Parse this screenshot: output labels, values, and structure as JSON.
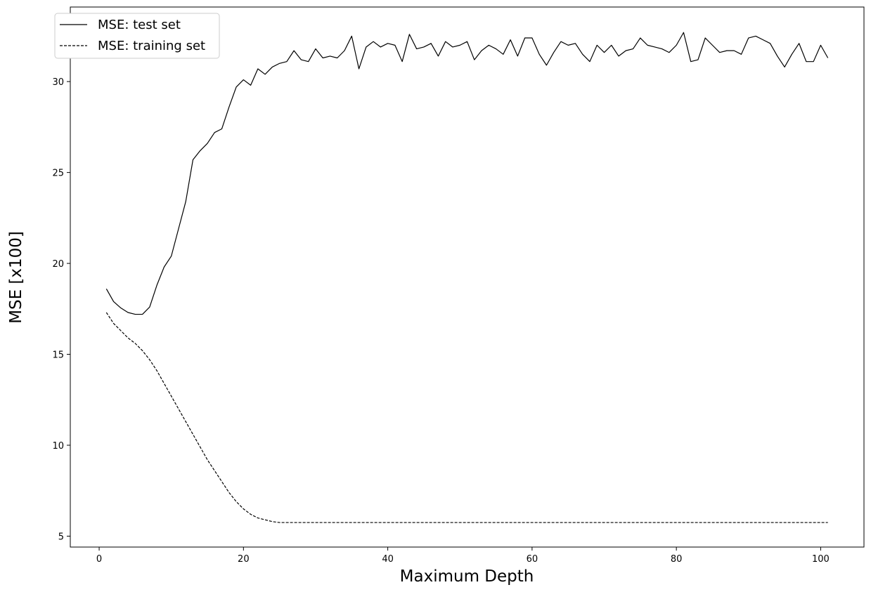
{
  "chart_data": {
    "type": "line",
    "title": "",
    "xlabel": "Maximum Depth",
    "ylabel": "MSE [x100]",
    "xlim": [
      -4,
      106
    ],
    "ylim": [
      4.4,
      34.1
    ],
    "xticks": [
      0,
      20,
      40,
      60,
      80,
      100
    ],
    "yticks": [
      5,
      10,
      15,
      20,
      25,
      30
    ],
    "grid": false,
    "legend_position": "top-left",
    "series": [
      {
        "name": "MSE: test set",
        "style": "solid",
        "color": "#000000",
        "x": [
          1,
          2,
          3,
          4,
          5,
          6,
          7,
          8,
          9,
          10,
          11,
          12,
          13,
          14,
          15,
          16,
          17,
          18,
          19,
          20,
          21,
          22,
          23,
          24,
          25,
          26,
          27,
          28,
          29,
          30,
          31,
          32,
          33,
          34,
          35,
          36,
          37,
          38,
          39,
          40,
          41,
          42,
          43,
          44,
          45,
          46,
          47,
          48,
          49,
          50,
          51,
          52,
          53,
          54,
          55,
          56,
          57,
          58,
          59,
          60,
          61,
          62,
          63,
          64,
          65,
          66,
          67,
          68,
          69,
          70,
          71,
          72,
          73,
          74,
          75,
          76,
          77,
          78,
          79,
          80,
          81,
          82,
          83,
          84,
          85,
          86,
          87,
          88,
          89,
          90,
          91,
          92,
          93,
          94,
          95,
          96,
          97,
          98,
          99,
          100,
          101
        ],
        "values": [
          18.6,
          17.9,
          17.55,
          17.3,
          17.2,
          17.2,
          17.6,
          18.8,
          19.8,
          20.4,
          21.9,
          23.4,
          25.7,
          26.2,
          26.6,
          27.2,
          27.4,
          28.6,
          29.7,
          30.1,
          29.8,
          30.7,
          30.4,
          30.8,
          31.0,
          31.1,
          31.7,
          31.2,
          31.1,
          31.8,
          31.3,
          31.4,
          31.3,
          31.7,
          32.5,
          30.7,
          31.9,
          32.2,
          31.9,
          32.1,
          32.0,
          31.1,
          32.6,
          31.8,
          31.9,
          32.1,
          31.4,
          32.2,
          31.9,
          32.0,
          32.2,
          31.2,
          31.7,
          32.0,
          31.8,
          31.5,
          32.3,
          31.4,
          32.4,
          32.4,
          31.5,
          30.9,
          31.6,
          32.2,
          32.0,
          32.1,
          31.5,
          31.1,
          32.0,
          31.6,
          32.0,
          31.4,
          31.7,
          31.8,
          32.4,
          32.0,
          31.9,
          31.8,
          31.6,
          32.0,
          32.7,
          31.1,
          31.2,
          32.4,
          32.0,
          31.6,
          31.7,
          31.7,
          31.5,
          32.4,
          32.5,
          32.3,
          32.1,
          31.4,
          30.8,
          31.5,
          32.1,
          31.1,
          31.1,
          32.0,
          31.3
        ]
      },
      {
        "name": "MSE: training set",
        "style": "dashed",
        "color": "#000000",
        "x": [
          1,
          2,
          3,
          4,
          5,
          6,
          7,
          8,
          9,
          10,
          11,
          12,
          13,
          14,
          15,
          16,
          17,
          18,
          19,
          20,
          21,
          22,
          23,
          24,
          25,
          26,
          27,
          28,
          29,
          30,
          31,
          32,
          33,
          34,
          35,
          36,
          37,
          38,
          39,
          40,
          41,
          42,
          43,
          44,
          45,
          46,
          47,
          48,
          49,
          50,
          51,
          52,
          53,
          54,
          55,
          56,
          57,
          58,
          59,
          60,
          61,
          62,
          63,
          64,
          65,
          66,
          67,
          68,
          69,
          70,
          71,
          72,
          73,
          74,
          75,
          76,
          77,
          78,
          79,
          80,
          81,
          82,
          83,
          84,
          85,
          86,
          87,
          88,
          89,
          90,
          91,
          92,
          93,
          94,
          95,
          96,
          97,
          98,
          99,
          100,
          101
        ],
        "values": [
          17.3,
          16.7,
          16.3,
          15.9,
          15.6,
          15.2,
          14.7,
          14.1,
          13.4,
          12.7,
          12.0,
          11.3,
          10.6,
          9.9,
          9.2,
          8.6,
          8.0,
          7.4,
          6.9,
          6.5,
          6.2,
          6.0,
          5.9,
          5.8,
          5.75,
          5.75,
          5.75,
          5.75,
          5.75,
          5.75,
          5.75,
          5.75,
          5.75,
          5.75,
          5.75,
          5.75,
          5.75,
          5.75,
          5.75,
          5.75,
          5.75,
          5.75,
          5.75,
          5.75,
          5.75,
          5.75,
          5.75,
          5.75,
          5.75,
          5.75,
          5.75,
          5.75,
          5.75,
          5.75,
          5.75,
          5.75,
          5.75,
          5.75,
          5.75,
          5.75,
          5.75,
          5.75,
          5.75,
          5.75,
          5.75,
          5.75,
          5.75,
          5.75,
          5.75,
          5.75,
          5.75,
          5.75,
          5.75,
          5.75,
          5.75,
          5.75,
          5.75,
          5.75,
          5.75,
          5.75,
          5.75,
          5.75,
          5.75,
          5.75,
          5.75,
          5.75,
          5.75,
          5.75,
          5.75,
          5.75,
          5.75,
          5.75,
          5.75,
          5.75,
          5.75,
          5.75,
          5.75,
          5.75,
          5.75,
          5.75,
          5.75
        ]
      }
    ]
  }
}
